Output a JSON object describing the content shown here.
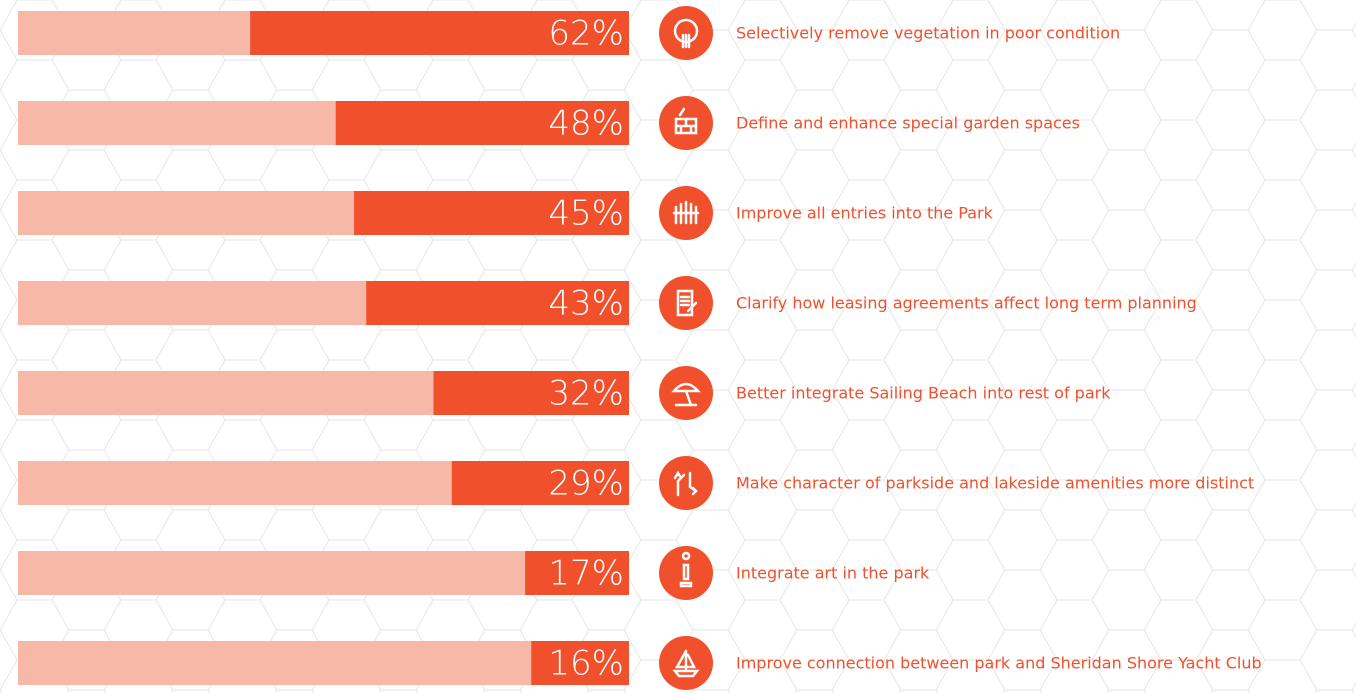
{
  "chart_data": {
    "type": "bar",
    "orientation": "horizontal",
    "categories": [
      "Selectively remove vegetation in poor condition",
      "Define and enhance special garden spaces",
      "Improve all entries into the Park",
      "Clarify how leasing agreements affect long term planning",
      "Better integrate Sailing Beach into rest of park",
      "Make character of parkside and lakeside amenities more distinct",
      "Integrate art in the park",
      "Improve connection between park and Sheridan Shore Yacht Club"
    ],
    "values": [
      62,
      48,
      45,
      43,
      32,
      29,
      17,
      16
    ],
    "value_labels": [
      "62%",
      "48%",
      "45%",
      "43%",
      "32%",
      "29%",
      "17%",
      "16%"
    ],
    "xlim": [
      0,
      100
    ],
    "color": "#f0502b",
    "track_color": "#f7b8a8"
  }
}
